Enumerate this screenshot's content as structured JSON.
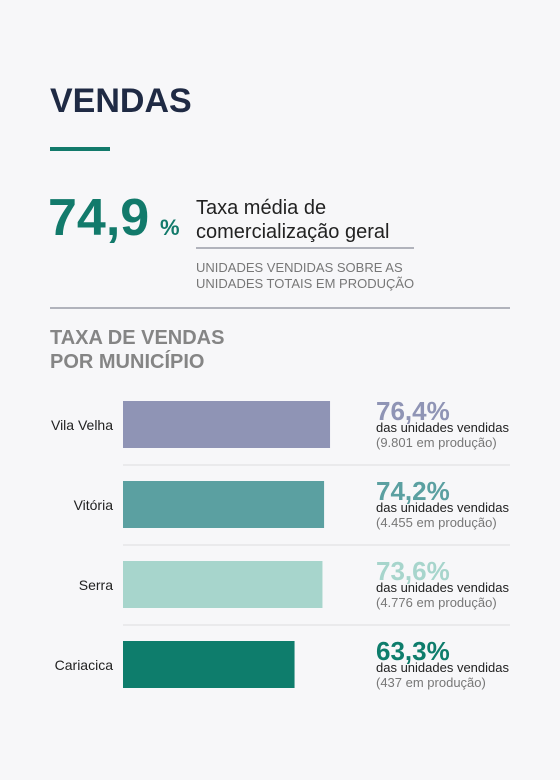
{
  "header": {
    "title": "VENDAS"
  },
  "kpi": {
    "value": "74,9",
    "unit": "%",
    "description": [
      "Taxa média de",
      "comercialização geral"
    ],
    "note": [
      "UNIDADES VENDIDAS SOBRE AS",
      "UNIDADES TOTAIS EM PRODUÇÃO"
    ]
  },
  "chart_data": {
    "type": "hbar",
    "title": [
      "TAXA DE VENDAS",
      "POR MUNICÍPIO"
    ],
    "categories": [
      "Vila Velha",
      "Vitória",
      "Serra",
      "Cariacica"
    ],
    "values": [
      76.4,
      74.2,
      73.6,
      63.3
    ],
    "value_labels": [
      "76,4%",
      "74,2%",
      "73,6%",
      "63,3%"
    ],
    "colors": [
      "#8f94b5",
      "#5ba0a1",
      "#a7d5cc",
      "#0e7d6c"
    ],
    "sublabels": [
      "das unidades vendidas",
      "das unidades vendidas",
      "das unidades vendidas",
      "das unidades vendidas"
    ],
    "production_labels": [
      "(9.801 em produção)",
      "(4.455 em produção)",
      "(4.776 em produção)",
      "(437 em produção)"
    ],
    "xlim": [
      0,
      100
    ]
  }
}
